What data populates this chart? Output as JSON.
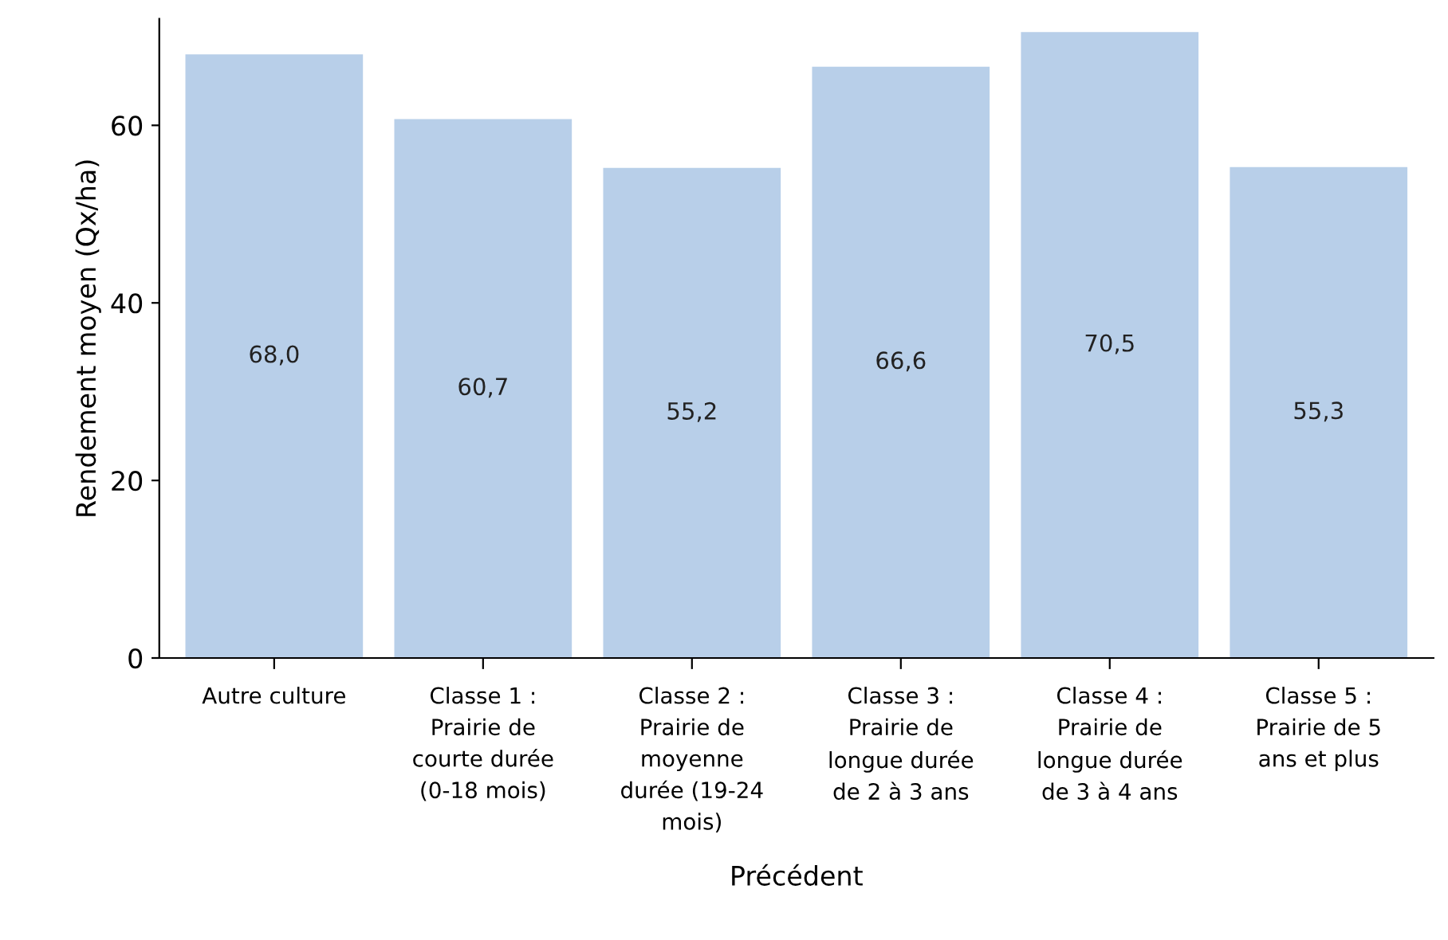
{
  "chart_data": {
    "type": "bar",
    "xlabel": "Précédent",
    "ylabel": "Rendement moyen (Qx/ha)",
    "categories": [
      "Autre culture",
      "Classe 1 :\nPrairie de\ncourte durée\n(0-18 mois)",
      "Classe 2 :\nPrairie de\nmoyenne\ndurée (19-24\nmois)",
      "Classe 3 :\nPrairie de\nlongue durée\nde 2 à 3 ans",
      "Classe 4 :\nPrairie de\nlongue durée\nde 3 à 4 ans",
      "Classe 5 :\nPrairie de 5\nans et plus"
    ],
    "values": [
      68.0,
      60.7,
      55.2,
      66.6,
      70.5,
      55.3
    ],
    "value_labels": [
      "68,0",
      "60,7",
      "55,2",
      "66,6",
      "70,5",
      "55,3"
    ],
    "color": "#b8cfe9",
    "ylim": [
      0,
      72
    ],
    "yticks": [
      0,
      20,
      40,
      60
    ],
    "grid": false,
    "legend": false
  }
}
